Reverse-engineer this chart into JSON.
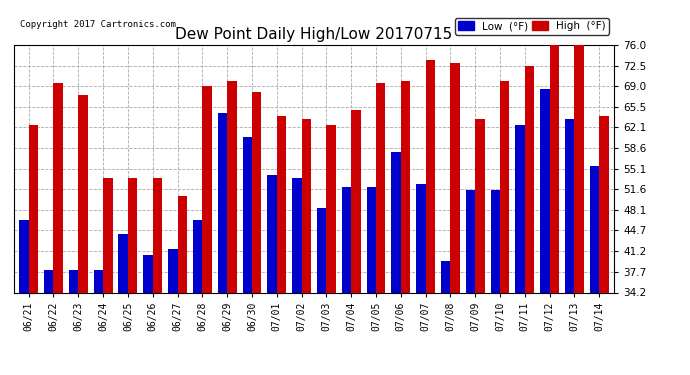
{
  "title": "Dew Point Daily High/Low 20170715",
  "copyright": "Copyright 2017 Cartronics.com",
  "yticks": [
    34.2,
    37.7,
    41.2,
    44.7,
    48.1,
    51.6,
    55.1,
    58.6,
    62.1,
    65.5,
    69.0,
    72.5,
    76.0
  ],
  "ylim": [
    34.2,
    76.0
  ],
  "dates": [
    "06/21",
    "06/22",
    "06/23",
    "06/24",
    "06/25",
    "06/26",
    "06/27",
    "06/28",
    "06/29",
    "06/30",
    "07/01",
    "07/02",
    "07/03",
    "07/04",
    "07/05",
    "07/06",
    "07/07",
    "07/08",
    "07/09",
    "07/10",
    "07/11",
    "07/12",
    "07/13",
    "07/14"
  ],
  "low": [
    46.5,
    38.0,
    38.0,
    38.0,
    44.0,
    40.5,
    41.5,
    46.5,
    64.5,
    60.5,
    54.0,
    53.5,
    48.5,
    52.0,
    52.0,
    58.0,
    52.5,
    39.5,
    51.5,
    51.5,
    62.5,
    68.5,
    63.5,
    55.5
  ],
  "high": [
    62.5,
    69.5,
    67.5,
    53.5,
    53.5,
    53.5,
    50.5,
    69.0,
    70.0,
    68.0,
    64.0,
    63.5,
    62.5,
    65.0,
    69.5,
    70.0,
    73.5,
    73.0,
    63.5,
    70.0,
    72.5,
    76.0,
    76.0,
    64.0
  ],
  "low_color": "#0000cc",
  "high_color": "#cc0000",
  "bg_color": "#ffffff",
  "grid_color": "#aaaaaa",
  "title_fontsize": 11,
  "bar_width": 0.38,
  "legend_low_label": "Low  (°F)",
  "legend_high_label": "High  (°F)"
}
